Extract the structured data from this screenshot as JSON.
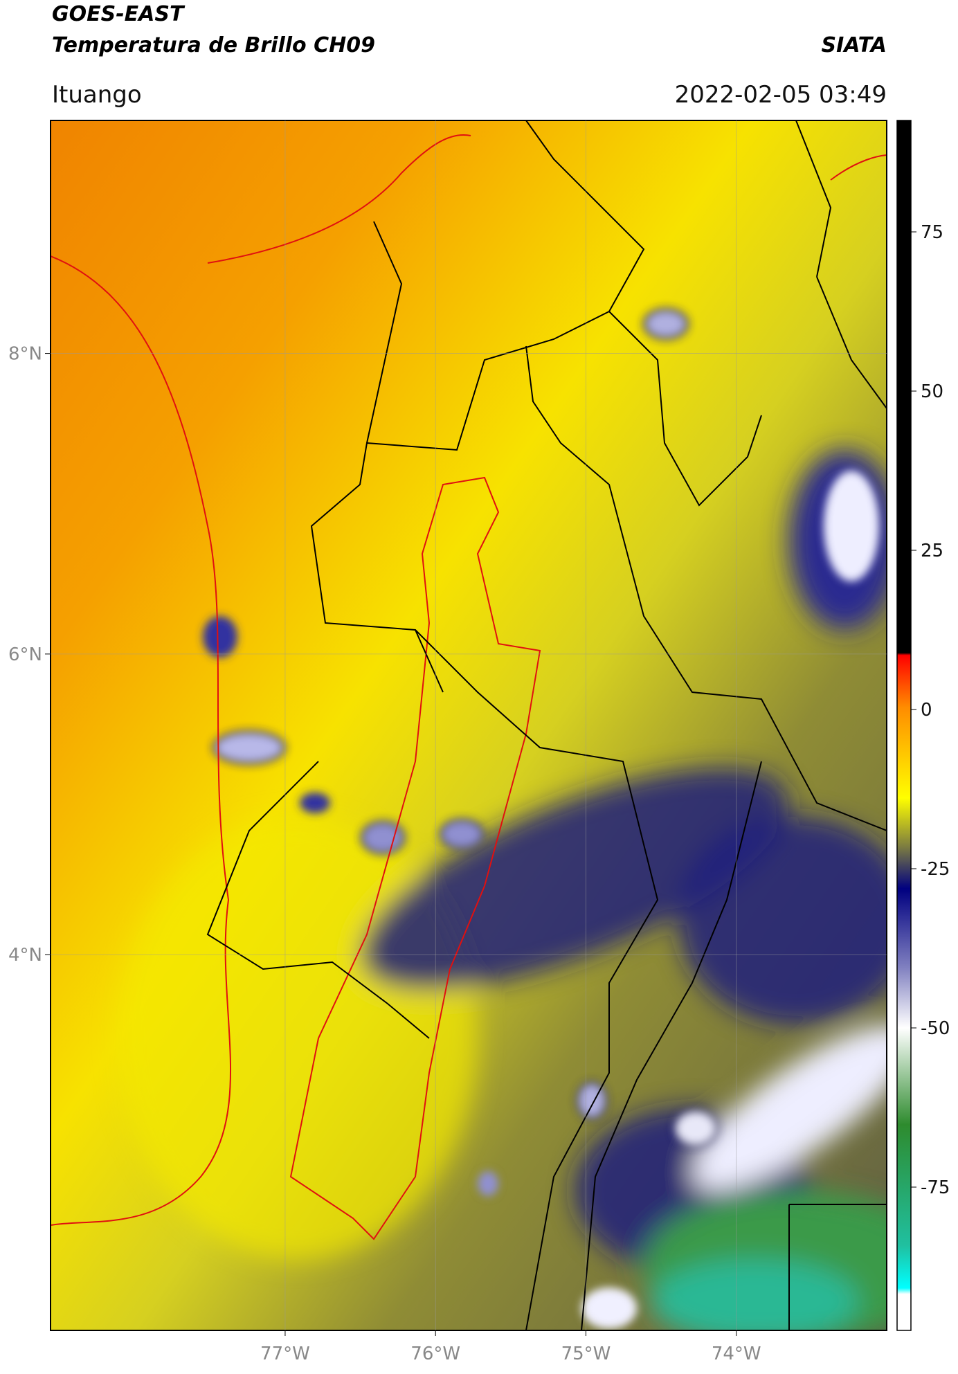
{
  "header": {
    "title": "GOES-EAST",
    "subtitle": "Temperatura de Brillo CH09",
    "brand": "SIATA",
    "region": "Ituango",
    "timestamp": "2022-02-05 03:49"
  },
  "map": {
    "xlim": [
      -78.56,
      -73.0
    ],
    "ylim": [
      1.5,
      9.55
    ],
    "xticks": [
      {
        "value": -77,
        "label": "77°W"
      },
      {
        "value": -76,
        "label": "76°W"
      },
      {
        "value": -75,
        "label": "75°W"
      },
      {
        "value": -74,
        "label": "74°W"
      }
    ],
    "yticks": [
      {
        "value": 8,
        "label": "8°N"
      },
      {
        "value": 6,
        "label": "6°N"
      },
      {
        "value": 4,
        "label": "4°N"
      }
    ]
  },
  "colorbar": {
    "clim": [
      -97.5,
      92.5
    ],
    "ticks": [
      75,
      50,
      25,
      0,
      -25,
      -50,
      -75
    ]
  }
}
